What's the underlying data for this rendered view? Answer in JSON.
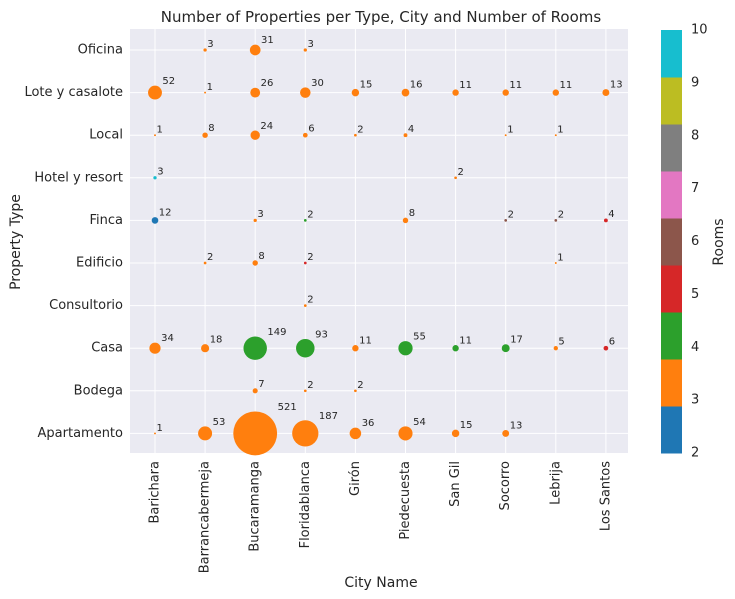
{
  "chart_data": {
    "type": "scatter",
    "title": "Number of Properties per Type, City and Number of Rooms",
    "xlabel": "City Name",
    "ylabel": "Property Type",
    "x_categories": [
      "Barichara",
      "Barrancabermeja",
      "Bucaramanga",
      "Floridablanca",
      "Girón",
      "Piedecuesta",
      "San Gil",
      "Socorro",
      "Lebrija",
      "Los Santos"
    ],
    "y_categories": [
      "Oficina",
      "Lote y casalote",
      "Local",
      "Hotel y resort",
      "Finca",
      "Edificio",
      "Consultorio",
      "Casa",
      "Bodega",
      "Apartamento"
    ],
    "colorbar": {
      "label": "Rooms",
      "range": [
        2,
        10
      ],
      "ticks": [
        "2",
        "3",
        "4",
        "5",
        "6",
        "7",
        "8",
        "9",
        "10"
      ],
      "colors": [
        "#1f77b4",
        "#ff7f0e",
        "#2ca02c",
        "#d62728",
        "#8c564b",
        "#e377c2",
        "#7f7f7f",
        "#bcbd22",
        "#17becf"
      ]
    },
    "grid": true,
    "points": [
      {
        "x": "Barrancabermeja",
        "y": "Oficina",
        "count": 3,
        "rooms": 3
      },
      {
        "x": "Bucaramanga",
        "y": "Oficina",
        "count": 31,
        "rooms": 3
      },
      {
        "x": "Floridablanca",
        "y": "Oficina",
        "count": 3,
        "rooms": 3
      },
      {
        "x": "Barichara",
        "y": "Lote y casalote",
        "count": 52,
        "rooms": 3
      },
      {
        "x": "Barrancabermeja",
        "y": "Lote y casalote",
        "count": 1,
        "rooms": 3
      },
      {
        "x": "Bucaramanga",
        "y": "Lote y casalote",
        "count": 26,
        "rooms": 3
      },
      {
        "x": "Floridablanca",
        "y": "Lote y casalote",
        "count": 30,
        "rooms": 3
      },
      {
        "x": "Girón",
        "y": "Lote y casalote",
        "count": 15,
        "rooms": 3
      },
      {
        "x": "Piedecuesta",
        "y": "Lote y casalote",
        "count": 16,
        "rooms": 3
      },
      {
        "x": "San Gil",
        "y": "Lote y casalote",
        "count": 11,
        "rooms": 3
      },
      {
        "x": "Socorro",
        "y": "Lote y casalote",
        "count": 11,
        "rooms": 3
      },
      {
        "x": "Lebrija",
        "y": "Lote y casalote",
        "count": 11,
        "rooms": 3
      },
      {
        "x": "Los Santos",
        "y": "Lote y casalote",
        "count": 13,
        "rooms": 3
      },
      {
        "x": "Barichara",
        "y": "Local",
        "count": 1,
        "rooms": 3
      },
      {
        "x": "Barrancabermeja",
        "y": "Local",
        "count": 8,
        "rooms": 3
      },
      {
        "x": "Bucaramanga",
        "y": "Local",
        "count": 24,
        "rooms": 3
      },
      {
        "x": "Floridablanca",
        "y": "Local",
        "count": 6,
        "rooms": 3
      },
      {
        "x": "Girón",
        "y": "Local",
        "count": 2,
        "rooms": 3
      },
      {
        "x": "Piedecuesta",
        "y": "Local",
        "count": 4,
        "rooms": 3
      },
      {
        "x": "Socorro",
        "y": "Local",
        "count": 1,
        "rooms": 3
      },
      {
        "x": "Lebrija",
        "y": "Local",
        "count": 1,
        "rooms": 3
      },
      {
        "x": "Barichara",
        "y": "Hotel y resort",
        "count": 3,
        "rooms": 10
      },
      {
        "x": "San Gil",
        "y": "Hotel y resort",
        "count": 2,
        "rooms": 3
      },
      {
        "x": "Barichara",
        "y": "Finca",
        "count": 12,
        "rooms": 2
      },
      {
        "x": "Bucaramanga",
        "y": "Finca",
        "count": 3,
        "rooms": 3
      },
      {
        "x": "Floridablanca",
        "y": "Finca",
        "count": 2,
        "rooms": 4
      },
      {
        "x": "Piedecuesta",
        "y": "Finca",
        "count": 8,
        "rooms": 3
      },
      {
        "x": "Socorro",
        "y": "Finca",
        "count": 2,
        "rooms": 6
      },
      {
        "x": "Lebrija",
        "y": "Finca",
        "count": 2,
        "rooms": 6
      },
      {
        "x": "Los Santos",
        "y": "Finca",
        "count": 4,
        "rooms": 5
      },
      {
        "x": "Barrancabermeja",
        "y": "Edificio",
        "count": 2,
        "rooms": 3
      },
      {
        "x": "Bucaramanga",
        "y": "Edificio",
        "count": 8,
        "rooms": 3
      },
      {
        "x": "Floridablanca",
        "y": "Edificio",
        "count": 2,
        "rooms": 5
      },
      {
        "x": "Lebrija",
        "y": "Edificio",
        "count": 1,
        "rooms": 3
      },
      {
        "x": "Floridablanca",
        "y": "Consultorio",
        "count": 2,
        "rooms": 3
      },
      {
        "x": "Barichara",
        "y": "Casa",
        "count": 34,
        "rooms": 3
      },
      {
        "x": "Barrancabermeja",
        "y": "Casa",
        "count": 18,
        "rooms": 3
      },
      {
        "x": "Bucaramanga",
        "y": "Casa",
        "count": 149,
        "rooms": 4
      },
      {
        "x": "Floridablanca",
        "y": "Casa",
        "count": 93,
        "rooms": 4
      },
      {
        "x": "Girón",
        "y": "Casa",
        "count": 11,
        "rooms": 3
      },
      {
        "x": "Piedecuesta",
        "y": "Casa",
        "count": 55,
        "rooms": 4
      },
      {
        "x": "San Gil",
        "y": "Casa",
        "count": 11,
        "rooms": 4
      },
      {
        "x": "Socorro",
        "y": "Casa",
        "count": 17,
        "rooms": 4
      },
      {
        "x": "Lebrija",
        "y": "Casa",
        "count": 5,
        "rooms": 3
      },
      {
        "x": "Los Santos",
        "y": "Casa",
        "count": 6,
        "rooms": 5
      },
      {
        "x": "Bucaramanga",
        "y": "Bodega",
        "count": 7,
        "rooms": 3
      },
      {
        "x": "Floridablanca",
        "y": "Bodega",
        "count": 2,
        "rooms": 3
      },
      {
        "x": "Girón",
        "y": "Bodega",
        "count": 2,
        "rooms": 3
      },
      {
        "x": "Barichara",
        "y": "Apartamento",
        "count": 1,
        "rooms": 3
      },
      {
        "x": "Barrancabermeja",
        "y": "Apartamento",
        "count": 53,
        "rooms": 3
      },
      {
        "x": "Bucaramanga",
        "y": "Apartamento",
        "count": 521,
        "rooms": 3
      },
      {
        "x": "Floridablanca",
        "y": "Apartamento",
        "count": 187,
        "rooms": 3
      },
      {
        "x": "Girón",
        "y": "Apartamento",
        "count": 36,
        "rooms": 3
      },
      {
        "x": "Piedecuesta",
        "y": "Apartamento",
        "count": 54,
        "rooms": 3
      },
      {
        "x": "San Gil",
        "y": "Apartamento",
        "count": 15,
        "rooms": 3
      },
      {
        "x": "Socorro",
        "y": "Apartamento",
        "count": 13,
        "rooms": 3
      }
    ]
  }
}
